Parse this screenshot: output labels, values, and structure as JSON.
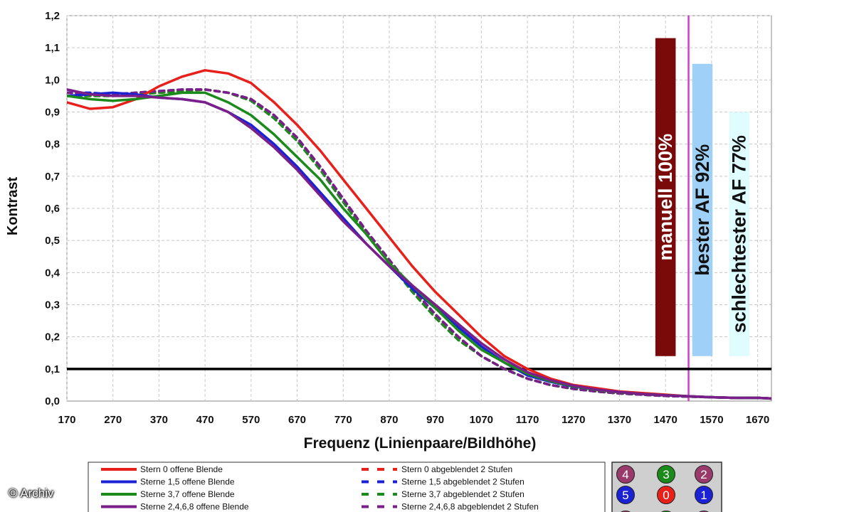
{
  "credit": "© Archiv",
  "chart_data": {
    "type": "line",
    "xlabel": "Frequenz (Linienpaare/Bildhöhe)",
    "ylabel": "Kontrast",
    "xlim": [
      170,
      1700
    ],
    "ylim": [
      0,
      1.2
    ],
    "xticks": [
      "170",
      "270",
      "370",
      "470",
      "570",
      "670",
      "770",
      "870",
      "970",
      "1070",
      "1170",
      "1270",
      "1370",
      "1470",
      "1570",
      "1670"
    ],
    "yticks": [
      "0,0",
      "0,1",
      "0,2",
      "0,3",
      "0,4",
      "0,5",
      "0,6",
      "0,7",
      "0,8",
      "0,9",
      "1,0",
      "1,1",
      "1,2"
    ],
    "grid": true,
    "threshold": 0.1,
    "marker_x": 1520,
    "series": [
      {
        "name": "Stern 0 offene Blende",
        "color": "#e8201b",
        "dash": false,
        "x": [
          170,
          220,
          270,
          320,
          370,
          420,
          470,
          520,
          570,
          620,
          670,
          720,
          770,
          820,
          870,
          920,
          970,
          1020,
          1070,
          1120,
          1170,
          1220,
          1270,
          1320,
          1370,
          1420,
          1470,
          1520,
          1570,
          1620,
          1670,
          1700
        ],
        "y": [
          0.93,
          0.91,
          0.915,
          0.94,
          0.98,
          1.01,
          1.03,
          1.02,
          0.99,
          0.93,
          0.86,
          0.78,
          0.69,
          0.6,
          0.51,
          0.42,
          0.34,
          0.27,
          0.2,
          0.14,
          0.1,
          0.07,
          0.05,
          0.04,
          0.03,
          0.025,
          0.02,
          0.015,
          0.012,
          0.01,
          0.01,
          0.008
        ]
      },
      {
        "name": "Sterne 1,5 offene Blende",
        "color": "#1a22d4",
        "dash": false,
        "x": [
          170,
          220,
          270,
          320,
          370,
          420,
          470,
          520,
          570,
          620,
          670,
          720,
          770,
          820,
          870,
          920,
          970,
          1020,
          1070,
          1120,
          1170,
          1220,
          1270,
          1320,
          1370,
          1420,
          1470,
          1520,
          1570,
          1620,
          1670,
          1700
        ],
        "y": [
          0.95,
          0.955,
          0.96,
          0.955,
          0.945,
          0.94,
          0.93,
          0.9,
          0.86,
          0.8,
          0.73,
          0.65,
          0.57,
          0.49,
          0.42,
          0.35,
          0.29,
          0.23,
          0.17,
          0.12,
          0.08,
          0.06,
          0.045,
          0.035,
          0.028,
          0.022,
          0.018,
          0.015,
          0.012,
          0.01,
          0.01,
          0.008
        ]
      },
      {
        "name": "Sterne 3,7 offene Blende",
        "color": "#1a8a1a",
        "dash": false,
        "x": [
          170,
          220,
          270,
          320,
          370,
          420,
          470,
          520,
          570,
          620,
          670,
          720,
          770,
          820,
          870,
          920,
          970,
          1020,
          1070,
          1120,
          1170,
          1220,
          1270,
          1320,
          1370,
          1420,
          1470,
          1520,
          1570,
          1620,
          1670,
          1700
        ],
        "y": [
          0.95,
          0.94,
          0.935,
          0.94,
          0.95,
          0.96,
          0.96,
          0.93,
          0.89,
          0.83,
          0.76,
          0.69,
          0.6,
          0.52,
          0.43,
          0.36,
          0.29,
          0.22,
          0.16,
          0.12,
          0.085,
          0.062,
          0.046,
          0.035,
          0.027,
          0.022,
          0.018,
          0.015,
          0.012,
          0.01,
          0.01,
          0.008
        ]
      },
      {
        "name": "Sterne 2,4,6,8 offene Blende",
        "color": "#7a1f8a",
        "dash": false,
        "x": [
          170,
          220,
          270,
          320,
          370,
          420,
          470,
          520,
          570,
          620,
          670,
          720,
          770,
          820,
          870,
          920,
          970,
          1020,
          1070,
          1120,
          1170,
          1220,
          1270,
          1320,
          1370,
          1420,
          1470,
          1520,
          1570,
          1620,
          1670,
          1700
        ],
        "y": [
          0.97,
          0.955,
          0.95,
          0.95,
          0.945,
          0.94,
          0.93,
          0.9,
          0.85,
          0.79,
          0.72,
          0.64,
          0.56,
          0.49,
          0.42,
          0.36,
          0.3,
          0.24,
          0.18,
          0.13,
          0.09,
          0.065,
          0.048,
          0.036,
          0.028,
          0.022,
          0.018,
          0.015,
          0.012,
          0.01,
          0.01,
          0.008
        ]
      },
      {
        "name": "Stern 0 abgeblendet 2 Stufen",
        "color": "#e8201b",
        "dash": true,
        "x": [
          170,
          220,
          270,
          320,
          370,
          420,
          470,
          520,
          570,
          620,
          670,
          720,
          770,
          820,
          870,
          920,
          970,
          1020,
          1070,
          1120,
          1170,
          1220,
          1270,
          1320,
          1370,
          1420,
          1470,
          1520,
          1570,
          1620,
          1670,
          1700
        ],
        "y": [
          0.95,
          0.95,
          0.95,
          0.955,
          0.96,
          0.965,
          0.97,
          0.96,
          0.94,
          0.89,
          0.82,
          0.73,
          0.63,
          0.53,
          0.44,
          0.35,
          0.27,
          0.2,
          0.14,
          0.1,
          0.07,
          0.05,
          0.038,
          0.03,
          0.024,
          0.02,
          0.016,
          0.014,
          0.012,
          0.01,
          0.01,
          0.008
        ]
      },
      {
        "name": "Sterne 1,5 abgeblendet 2 Stufen",
        "color": "#1a22d4",
        "dash": true,
        "x": [
          170,
          220,
          270,
          320,
          370,
          420,
          470,
          520,
          570,
          620,
          670,
          720,
          770,
          820,
          870,
          920,
          970,
          1020,
          1070,
          1120,
          1170,
          1220,
          1270,
          1320,
          1370,
          1420,
          1470,
          1520,
          1570,
          1620,
          1670,
          1700
        ],
        "y": [
          0.96,
          0.96,
          0.955,
          0.96,
          0.965,
          0.97,
          0.97,
          0.96,
          0.94,
          0.89,
          0.82,
          0.73,
          0.63,
          0.53,
          0.44,
          0.35,
          0.27,
          0.2,
          0.14,
          0.1,
          0.07,
          0.05,
          0.038,
          0.03,
          0.024,
          0.02,
          0.016,
          0.014,
          0.012,
          0.01,
          0.01,
          0.008
        ]
      },
      {
        "name": "Sterne 3,7 abgeblendet 2 Stufen",
        "color": "#1a8a1a",
        "dash": true,
        "x": [
          170,
          220,
          270,
          320,
          370,
          420,
          470,
          520,
          570,
          620,
          670,
          720,
          770,
          820,
          870,
          920,
          970,
          1020,
          1070,
          1120,
          1170,
          1220,
          1270,
          1320,
          1370,
          1420,
          1470,
          1520,
          1570,
          1620,
          1670,
          1700
        ],
        "y": [
          0.95,
          0.95,
          0.95,
          0.955,
          0.96,
          0.965,
          0.97,
          0.96,
          0.935,
          0.88,
          0.81,
          0.72,
          0.62,
          0.52,
          0.43,
          0.34,
          0.26,
          0.19,
          0.14,
          0.1,
          0.07,
          0.05,
          0.038,
          0.03,
          0.024,
          0.02,
          0.016,
          0.014,
          0.012,
          0.01,
          0.01,
          0.008
        ]
      },
      {
        "name": "Sterne 2,4,6,8 abgeblendet 2 Stufen",
        "color": "#7a1f8a",
        "dash": true,
        "x": [
          170,
          220,
          270,
          320,
          370,
          420,
          470,
          520,
          570,
          620,
          670,
          720,
          770,
          820,
          870,
          920,
          970,
          1020,
          1070,
          1120,
          1170,
          1220,
          1270,
          1320,
          1370,
          1420,
          1470,
          1520,
          1570,
          1620,
          1670,
          1700
        ],
        "y": [
          0.96,
          0.955,
          0.955,
          0.96,
          0.965,
          0.97,
          0.97,
          0.96,
          0.94,
          0.89,
          0.82,
          0.73,
          0.63,
          0.53,
          0.44,
          0.35,
          0.27,
          0.2,
          0.14,
          0.1,
          0.07,
          0.05,
          0.038,
          0.03,
          0.024,
          0.02,
          0.016,
          0.014,
          0.012,
          0.01,
          0.01,
          0.008
        ]
      }
    ],
    "bars": [
      {
        "label": "manuell 100%",
        "value": 1.13,
        "color": "#7a0a0a",
        "text_color": "#ffffff"
      },
      {
        "label": "bester AF 92%",
        "value": 1.05,
        "color": "#9fd0f7",
        "text_color": "#111111"
      },
      {
        "label": "schlechtester AF 77%",
        "value": 0.9,
        "color": "#dffcff",
        "text_color": "#111111"
      }
    ],
    "bar_base": 0.14,
    "bar_x_centers": [
      1470,
      1550,
      1630
    ],
    "bar_width_units": 70,
    "star_grid": [
      {
        "label": "4",
        "color": "#9a3a6a"
      },
      {
        "label": "3",
        "color": "#1a8a1a"
      },
      {
        "label": "2",
        "color": "#9a3a6a"
      },
      {
        "label": "5",
        "color": "#1a22d4"
      },
      {
        "label": "0",
        "color": "#e8201b"
      },
      {
        "label": "1",
        "color": "#1a22d4"
      }
    ]
  }
}
